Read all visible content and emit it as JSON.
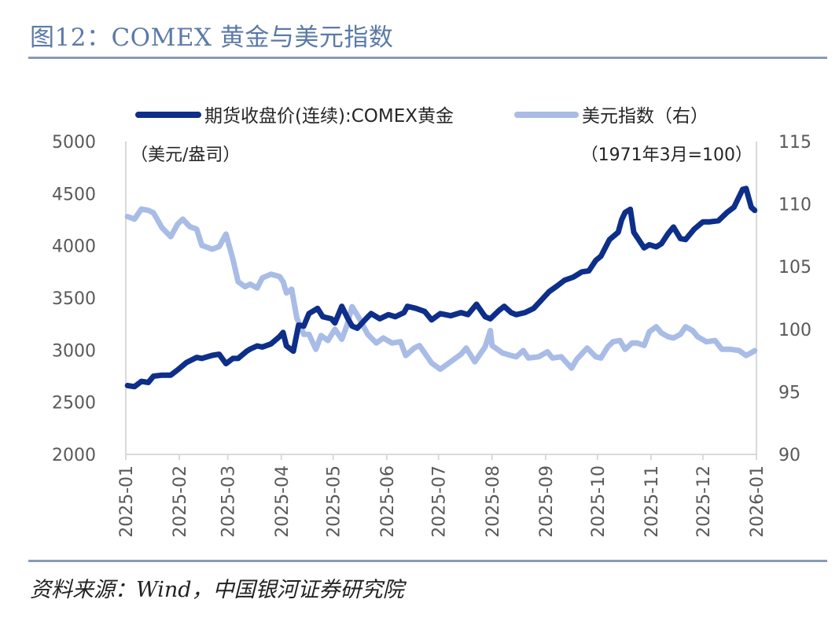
{
  "figure": {
    "title": "图12：COMEX 黄金与美元指数",
    "source": "资料来源：Wind，中国银河证券研究院"
  },
  "chart_data": {
    "type": "line",
    "units_left": "（美元/盎司）",
    "units_right": "（1971年3月=100）",
    "x_ticks": [
      "2025-01",
      "2025-02",
      "2025-03",
      "2025-04",
      "2025-05",
      "2025-06",
      "2025-07",
      "2025-08",
      "2025-09",
      "2025-10",
      "2025-11",
      "2025-12",
      "2026-01"
    ],
    "y_left": {
      "min": 2000,
      "max": 5000,
      "ticks": [
        2000,
        2500,
        3000,
        3500,
        4000,
        4500,
        5000
      ]
    },
    "y_right": {
      "min": 90,
      "max": 115,
      "ticks": [
        90,
        95,
        100,
        105,
        110,
        115
      ]
    },
    "legend": {
      "position": "top"
    },
    "grid": false,
    "series": [
      {
        "name": "期货收盘价(连续):COMEX黄金",
        "axis": "left",
        "color": "#0d2f8a",
        "points": [
          [
            "2025-01-02",
            2660
          ],
          [
            "2025-01-06",
            2650
          ],
          [
            "2025-01-10",
            2700
          ],
          [
            "2025-01-14",
            2690
          ],
          [
            "2025-01-17",
            2750
          ],
          [
            "2025-01-22",
            2760
          ],
          [
            "2025-01-27",
            2760
          ],
          [
            "2025-01-31",
            2810
          ],
          [
            "2025-02-05",
            2880
          ],
          [
            "2025-02-11",
            2930
          ],
          [
            "2025-02-14",
            2920
          ],
          [
            "2025-02-20",
            2950
          ],
          [
            "2025-02-24",
            2960
          ],
          [
            "2025-02-28",
            2870
          ],
          [
            "2025-03-04",
            2920
          ],
          [
            "2025-03-07",
            2920
          ],
          [
            "2025-03-12",
            2990
          ],
          [
            "2025-03-14",
            3010
          ],
          [
            "2025-03-18",
            3040
          ],
          [
            "2025-03-21",
            3030
          ],
          [
            "2025-03-26",
            3060
          ],
          [
            "2025-03-31",
            3130
          ],
          [
            "2025-04-02",
            3170
          ],
          [
            "2025-04-04",
            3040
          ],
          [
            "2025-04-08",
            2990
          ],
          [
            "2025-04-11",
            3240
          ],
          [
            "2025-04-14",
            3230
          ],
          [
            "2025-04-17",
            3350
          ],
          [
            "2025-04-22",
            3400
          ],
          [
            "2025-04-25",
            3320
          ],
          [
            "2025-04-30",
            3300
          ],
          [
            "2025-05-02",
            3260
          ],
          [
            "2025-05-06",
            3420
          ],
          [
            "2025-05-09",
            3320
          ],
          [
            "2025-05-12",
            3230
          ],
          [
            "2025-05-15",
            3210
          ],
          [
            "2025-05-20",
            3300
          ],
          [
            "2025-05-23",
            3350
          ],
          [
            "2025-05-28",
            3300
          ],
          [
            "2025-06-02",
            3340
          ],
          [
            "2025-06-06",
            3320
          ],
          [
            "2025-06-11",
            3360
          ],
          [
            "2025-06-13",
            3420
          ],
          [
            "2025-06-18",
            3400
          ],
          [
            "2025-06-23",
            3370
          ],
          [
            "2025-06-27",
            3290
          ],
          [
            "2025-07-02",
            3350
          ],
          [
            "2025-07-08",
            3330
          ],
          [
            "2025-07-14",
            3360
          ],
          [
            "2025-07-18",
            3340
          ],
          [
            "2025-07-23",
            3440
          ],
          [
            "2025-07-28",
            3320
          ],
          [
            "2025-07-31",
            3300
          ],
          [
            "2025-08-05",
            3380
          ],
          [
            "2025-08-08",
            3420
          ],
          [
            "2025-08-12",
            3360
          ],
          [
            "2025-08-15",
            3340
          ],
          [
            "2025-08-20",
            3360
          ],
          [
            "2025-08-25",
            3400
          ],
          [
            "2025-08-29",
            3470
          ],
          [
            "2025-09-03",
            3560
          ],
          [
            "2025-09-08",
            3620
          ],
          [
            "2025-09-12",
            3670
          ],
          [
            "2025-09-17",
            3700
          ],
          [
            "2025-09-22",
            3750
          ],
          [
            "2025-09-26",
            3760
          ],
          [
            "2025-09-30",
            3860
          ],
          [
            "2025-10-03",
            3900
          ],
          [
            "2025-10-08",
            4060
          ],
          [
            "2025-10-13",
            4130
          ],
          [
            "2025-10-15",
            4250
          ],
          [
            "2025-10-17",
            4320
          ],
          [
            "2025-10-20",
            4350
          ],
          [
            "2025-10-22",
            4130
          ],
          [
            "2025-10-24",
            4080
          ],
          [
            "2025-10-28",
            3980
          ],
          [
            "2025-10-31",
            4010
          ],
          [
            "2025-11-04",
            3990
          ],
          [
            "2025-11-07",
            4020
          ],
          [
            "2025-11-11",
            4120
          ],
          [
            "2025-11-14",
            4180
          ],
          [
            "2025-11-18",
            4070
          ],
          [
            "2025-11-21",
            4060
          ],
          [
            "2025-11-26",
            4160
          ],
          [
            "2025-12-01",
            4230
          ],
          [
            "2025-12-05",
            4230
          ],
          [
            "2025-12-10",
            4240
          ],
          [
            "2025-12-15",
            4320
          ],
          [
            "2025-12-19",
            4370
          ],
          [
            "2025-12-24",
            4540
          ],
          [
            "2025-12-26",
            4550
          ],
          [
            "2025-12-29",
            4370
          ],
          [
            "2025-12-31",
            4340
          ]
        ]
      },
      {
        "name": "美元指数（右）",
        "axis": "right",
        "color": "#a8bce6",
        "points": [
          [
            "2025-01-02",
            109.0
          ],
          [
            "2025-01-06",
            108.8
          ],
          [
            "2025-01-10",
            109.6
          ],
          [
            "2025-01-14",
            109.5
          ],
          [
            "2025-01-17",
            109.3
          ],
          [
            "2025-01-22",
            108.1
          ],
          [
            "2025-01-27",
            107.4
          ],
          [
            "2025-01-31",
            108.4
          ],
          [
            "2025-02-03",
            108.8
          ],
          [
            "2025-02-07",
            108.2
          ],
          [
            "2025-02-11",
            108.0
          ],
          [
            "2025-02-14",
            106.7
          ],
          [
            "2025-02-20",
            106.4
          ],
          [
            "2025-02-24",
            106.6
          ],
          [
            "2025-02-28",
            107.6
          ],
          [
            "2025-03-04",
            105.6
          ],
          [
            "2025-03-07",
            103.8
          ],
          [
            "2025-03-11",
            103.4
          ],
          [
            "2025-03-14",
            103.6
          ],
          [
            "2025-03-18",
            103.3
          ],
          [
            "2025-03-21",
            104.1
          ],
          [
            "2025-03-26",
            104.4
          ],
          [
            "2025-03-31",
            104.2
          ],
          [
            "2025-04-02",
            103.8
          ],
          [
            "2025-04-04",
            102.9
          ],
          [
            "2025-04-07",
            103.2
          ],
          [
            "2025-04-10",
            100.9
          ],
          [
            "2025-04-14",
            99.6
          ],
          [
            "2025-04-17",
            99.6
          ],
          [
            "2025-04-21",
            98.4
          ],
          [
            "2025-04-24",
            99.5
          ],
          [
            "2025-04-28",
            99.1
          ],
          [
            "2025-05-02",
            100.0
          ],
          [
            "2025-05-06",
            99.2
          ],
          [
            "2025-05-09",
            100.3
          ],
          [
            "2025-05-12",
            101.8
          ],
          [
            "2025-05-16",
            100.9
          ],
          [
            "2025-05-21",
            99.6
          ],
          [
            "2025-05-26",
            98.9
          ],
          [
            "2025-05-30",
            99.3
          ],
          [
            "2025-06-04",
            98.9
          ],
          [
            "2025-06-09",
            99.0
          ],
          [
            "2025-06-12",
            97.9
          ],
          [
            "2025-06-17",
            98.5
          ],
          [
            "2025-06-20",
            98.7
          ],
          [
            "2025-06-24",
            97.9
          ],
          [
            "2025-06-27",
            97.3
          ],
          [
            "2025-07-02",
            96.8
          ],
          [
            "2025-07-08",
            97.4
          ],
          [
            "2025-07-14",
            98.0
          ],
          [
            "2025-07-17",
            98.5
          ],
          [
            "2025-07-22",
            97.4
          ],
          [
            "2025-07-28",
            98.6
          ],
          [
            "2025-07-31",
            99.9
          ],
          [
            "2025-08-01",
            98.7
          ],
          [
            "2025-08-07",
            98.1
          ],
          [
            "2025-08-12",
            97.9
          ],
          [
            "2025-08-15",
            97.8
          ],
          [
            "2025-08-19",
            98.3
          ],
          [
            "2025-08-22",
            97.7
          ],
          [
            "2025-08-28",
            97.8
          ],
          [
            "2025-09-02",
            98.2
          ],
          [
            "2025-09-05",
            97.7
          ],
          [
            "2025-09-10",
            97.8
          ],
          [
            "2025-09-16",
            96.9
          ],
          [
            "2025-09-19",
            97.6
          ],
          [
            "2025-09-25",
            98.5
          ],
          [
            "2025-09-30",
            97.8
          ],
          [
            "2025-10-03",
            97.7
          ],
          [
            "2025-10-07",
            98.6
          ],
          [
            "2025-10-10",
            99.0
          ],
          [
            "2025-10-14",
            99.1
          ],
          [
            "2025-10-17",
            98.4
          ],
          [
            "2025-10-21",
            98.9
          ],
          [
            "2025-10-24",
            98.9
          ],
          [
            "2025-10-28",
            98.7
          ],
          [
            "2025-10-31",
            99.8
          ],
          [
            "2025-11-04",
            100.2
          ],
          [
            "2025-11-07",
            99.7
          ],
          [
            "2025-11-11",
            99.4
          ],
          [
            "2025-11-14",
            99.3
          ],
          [
            "2025-11-18",
            99.6
          ],
          [
            "2025-11-21",
            100.2
          ],
          [
            "2025-11-25",
            99.9
          ],
          [
            "2025-11-28",
            99.4
          ],
          [
            "2025-12-03",
            99.0
          ],
          [
            "2025-12-08",
            99.1
          ],
          [
            "2025-12-12",
            98.4
          ],
          [
            "2025-12-17",
            98.4
          ],
          [
            "2025-12-22",
            98.3
          ],
          [
            "2025-12-26",
            97.9
          ],
          [
            "2025-12-30",
            98.2
          ],
          [
            "2025-12-31",
            98.3
          ]
        ]
      }
    ]
  }
}
